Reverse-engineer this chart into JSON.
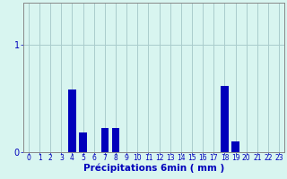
{
  "title": "",
  "xlabel": "Précipitations 6min ( mm )",
  "ylabel": "",
  "background_color": "#d8f5f0",
  "bar_color": "#0000bb",
  "grid_color": "#aacccc",
  "ylim": [
    0,
    1.4
  ],
  "yticks": [
    0,
    1
  ],
  "ytick_labels": [
    "0",
    "1"
  ],
  "xlim": [
    -0.5,
    23.5
  ],
  "xticks": [
    0,
    1,
    2,
    3,
    4,
    5,
    6,
    7,
    8,
    9,
    10,
    11,
    12,
    13,
    14,
    15,
    16,
    17,
    18,
    19,
    20,
    21,
    22,
    23
  ],
  "values": [
    0,
    0,
    0,
    0,
    0.58,
    0.18,
    0,
    0.22,
    0.22,
    0,
    0,
    0,
    0,
    0,
    0,
    0,
    0,
    0,
    0.62,
    0.1,
    0,
    0,
    0,
    0
  ],
  "bar_width": 0.7,
  "xlabel_fontsize": 7.5,
  "tick_fontsize": 5.5,
  "ytick_fontsize": 7,
  "spine_color": "#888888"
}
